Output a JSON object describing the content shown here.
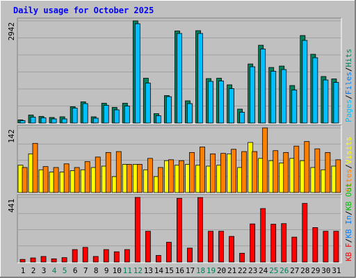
{
  "chart_data": [
    {
      "type": "bar",
      "title": "Daily usage for October 2025",
      "panel": "pages-files-hits",
      "categories": [
        "1",
        "2",
        "3",
        "4",
        "5",
        "6",
        "7",
        "8",
        "9",
        "10",
        "11",
        "12",
        "13",
        "14",
        "15",
        "16",
        "17",
        "18",
        "19",
        "20",
        "21",
        "22",
        "23",
        "24",
        "25",
        "26",
        "27",
        "28",
        "29",
        "30",
        "31"
      ],
      "ymax_label": "2942",
      "ylim": [
        0,
        2942
      ],
      "series": [
        {
          "name": "Hits",
          "color": "#00805c",
          "values": [
            90,
            230,
            190,
            160,
            180,
            470,
            610,
            180,
            570,
            450,
            570,
            2942,
            1290,
            270,
            790,
            2650,
            640,
            2660,
            1280,
            1290,
            1100,
            400,
            1700,
            2240,
            1600,
            1640,
            1080,
            2520,
            1980,
            1340,
            1270
          ]
        },
        {
          "name": "Files",
          "color": "#0080ff",
          "values": [
            70,
            170,
            150,
            120,
            120,
            430,
            560,
            140,
            510,
            380,
            490,
            2860,
            1150,
            210,
            760,
            2580,
            560,
            2580,
            1200,
            1210,
            990,
            310,
            1620,
            2130,
            1490,
            1540,
            950,
            2380,
            1880,
            1240,
            1170
          ]
        },
        {
          "name": "Pages",
          "color": "#00c0ff",
          "values": [
            70,
            170,
            150,
            120,
            120,
            430,
            560,
            140,
            510,
            380,
            490,
            2860,
            1150,
            210,
            760,
            2580,
            560,
            2580,
            1200,
            1210,
            990,
            310,
            1620,
            2130,
            1490,
            1540,
            950,
            2380,
            1880,
            1240,
            1170
          ]
        }
      ],
      "legend": [
        "Pages",
        "Files",
        "Hits"
      ],
      "legend_colors": [
        "#00c0ff",
        "#0080ff",
        "#00805c"
      ],
      "legend_sep": "/"
    },
    {
      "type": "bar",
      "panel": "visits-sites",
      "categories": [
        "1",
        "2",
        "3",
        "4",
        "5",
        "6",
        "7",
        "8",
        "9",
        "10",
        "11",
        "12",
        "13",
        "14",
        "15",
        "16",
        "17",
        "18",
        "19",
        "20",
        "21",
        "22",
        "23",
        "24",
        "25",
        "26",
        "27",
        "28",
        "29",
        "30",
        "31"
      ],
      "ymax_label": "142",
      "ylim": [
        0,
        142
      ],
      "series": [
        {
          "name": "Visits",
          "color": "#ffff00",
          "values": [
            60,
            85,
            50,
            45,
            45,
            48,
            50,
            55,
            58,
            35,
            62,
            62,
            50,
            35,
            70,
            60,
            62,
            60,
            58,
            60,
            85,
            55,
            110,
            75,
            70,
            65,
            75,
            70,
            55,
            50,
            58
          ]
        },
        {
          "name": "Sites",
          "color": "#ff8000",
          "values": [
            55,
            108,
            57,
            55,
            63,
            55,
            68,
            78,
            88,
            90,
            62,
            62,
            75,
            55,
            72,
            70,
            88,
            100,
            85,
            86,
            95,
            90,
            90,
            142,
            92,
            88,
            102,
            112,
            96,
            88,
            72
          ]
        }
      ],
      "legend": [
        "Sites",
        "Visits"
      ],
      "legend_colors": [
        "#ff8000",
        "#ffff00"
      ],
      "legend_sep": "/"
    },
    {
      "type": "bar",
      "panel": "kbytes",
      "categories": [
        "1",
        "2",
        "3",
        "4",
        "5",
        "6",
        "7",
        "8",
        "9",
        "10",
        "11",
        "12",
        "13",
        "14",
        "15",
        "16",
        "17",
        "18",
        "19",
        "20",
        "21",
        "22",
        "23",
        "24",
        "25",
        "26",
        "27",
        "28",
        "29",
        "30",
        "31"
      ],
      "ymax_label": "441",
      "ylim": [
        0,
        441
      ],
      "series": [
        {
          "name": "KB F",
          "color": "#ff0000",
          "values": [
            18,
            28,
            38,
            22,
            30,
            85,
            100,
            38,
            85,
            70,
            85,
            441,
            210,
            45,
            135,
            435,
            95,
            440,
            210,
            210,
            175,
            60,
            260,
            365,
            258,
            262,
            170,
            400,
            235,
            210,
            210
          ]
        }
      ],
      "legend": [
        "KB F",
        "KB In",
        "KB Out"
      ],
      "legend_colors": [
        "#ff0000",
        "#0080ff",
        "#00c000"
      ],
      "legend_sep": "/"
    }
  ],
  "x_label_colors": {
    "weekday": "#000000",
    "weekend": "#00805c"
  },
  "weekend_days": [
    "4",
    "5",
    "11",
    "12",
    "18",
    "19",
    "25",
    "26"
  ]
}
